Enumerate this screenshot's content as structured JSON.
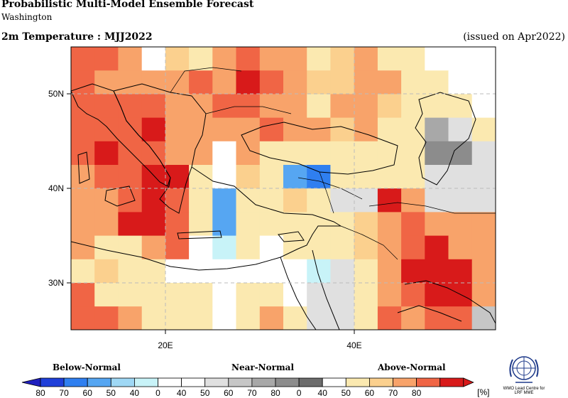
{
  "header": {
    "title": "Probabilistic Multi-Model Ensemble Forecast",
    "subtitle": "Washington",
    "variable": "2m Temperature : MJJ2022",
    "issued": "(issued on Apr2022)"
  },
  "map": {
    "lat_labels": [
      "50N",
      "40N",
      "30N"
    ],
    "lon_labels": [
      "20E",
      "40E"
    ]
  },
  "legend": {
    "categories": [
      "Below-Normal",
      "Near-Normal",
      "Above-Normal"
    ],
    "ticks": [
      "80",
      "70",
      "60",
      "50",
      "40",
      "0",
      "40",
      "50",
      "60",
      "70",
      "80",
      "0",
      "40",
      "50",
      "60",
      "70",
      "80"
    ],
    "unit": "[%]",
    "colors": {
      "below": [
        "#1f3fd9",
        "#2f7ff0",
        "#56a6f2",
        "#9fd8f5",
        "#c8f3f8"
      ],
      "near": [
        "#e0e0e0",
        "#c6c6c6",
        "#a8a8a8",
        "#8c8c8c",
        "#6c6c6c"
      ],
      "above": [
        "#fbe9b0",
        "#fbd08e",
        "#f8a36a",
        "#f06545",
        "#d81a1a"
      ]
    }
  },
  "logo": {
    "line1": "WMO Lead Centre for",
    "line2": "LRF MME"
  }
}
